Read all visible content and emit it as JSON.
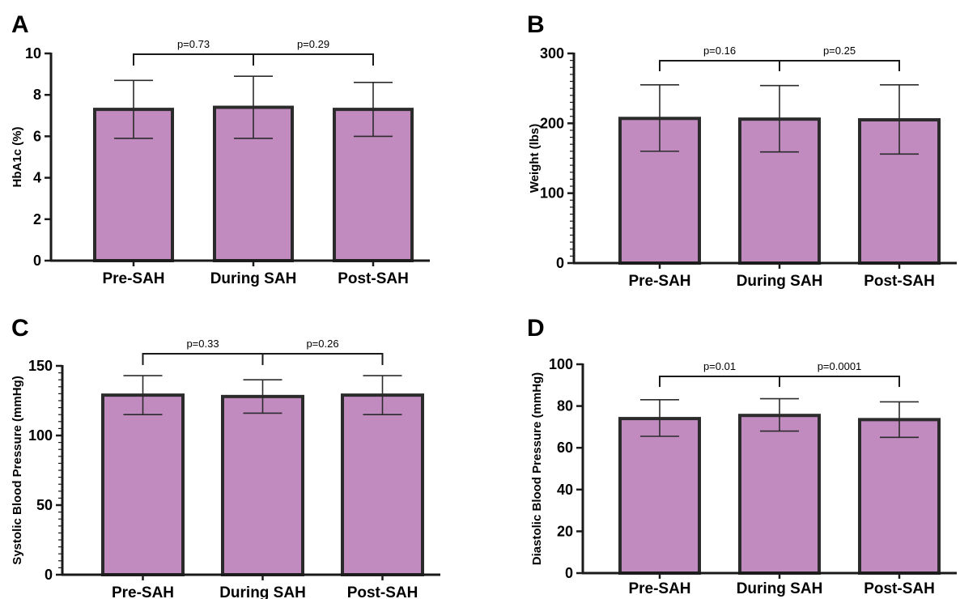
{
  "chart_data": [
    {
      "panel": "A",
      "type": "bar",
      "categories": [
        "Pre-SAH",
        "During SAH",
        "Post-SAH"
      ],
      "values": [
        7.3,
        7.4,
        7.3
      ],
      "error_upper": [
        8.7,
        8.9,
        8.6
      ],
      "error_lower": [
        5.9,
        5.9,
        6.0
      ],
      "ylabel": "HbA1c  (%)",
      "ylim": [
        0,
        10
      ],
      "major_ticks": [
        0,
        2,
        4,
        6,
        8,
        10
      ],
      "minor_ticks": false,
      "comparisons": [
        {
          "from": 0,
          "to": 1,
          "label": "p=0.73"
        },
        {
          "from": 1,
          "to": 2,
          "label": "p=0.29"
        }
      ],
      "bar_color": "#c28bc0"
    },
    {
      "panel": "B",
      "type": "bar",
      "categories": [
        "Pre-SAH",
        "During SAH",
        "Post-SAH"
      ],
      "values": [
        207,
        206,
        205
      ],
      "error_upper": [
        255,
        254,
        255
      ],
      "error_lower": [
        160,
        159,
        156
      ],
      "ylabel": "Weight (lbs)",
      "ylim": [
        0,
        300
      ],
      "major_ticks": [
        0,
        100,
        200,
        300
      ],
      "minor_ticks": true,
      "comparisons": [
        {
          "from": 0,
          "to": 1,
          "label": "p=0.16"
        },
        {
          "from": 1,
          "to": 2,
          "label": "p=0.25"
        }
      ],
      "bar_color": "#c28bc0"
    },
    {
      "panel": "C",
      "type": "bar",
      "categories": [
        "Pre-SAH",
        "During SAH",
        "Post-SAH"
      ],
      "values": [
        129,
        128,
        129
      ],
      "error_upper": [
        143,
        140,
        143
      ],
      "error_lower": [
        115,
        116,
        115
      ],
      "ylabel": "Systolic Blood Pressure (mmHg)",
      "ylim": [
        0,
        150
      ],
      "major_ticks": [
        0,
        50,
        100,
        150
      ],
      "minor_ticks": true,
      "comparisons": [
        {
          "from": 0,
          "to": 1,
          "label": "p=0.33"
        },
        {
          "from": 1,
          "to": 2,
          "label": "p=0.26"
        }
      ],
      "bar_color": "#c28bc0"
    },
    {
      "panel": "D",
      "type": "bar",
      "categories": [
        "Pre-SAH",
        "During SAH",
        "Post-SAH"
      ],
      "values": [
        74,
        75.5,
        73.5
      ],
      "error_upper": [
        83,
        83.5,
        82
      ],
      "error_lower": [
        65.5,
        68,
        65
      ],
      "ylabel": "Diastolic Blood Pressure (mmHg)",
      "ylim": [
        0,
        100
      ],
      "major_ticks": [
        0,
        20,
        40,
        60,
        80,
        100
      ],
      "minor_ticks": false,
      "comparisons": [
        {
          "from": 0,
          "to": 1,
          "label": "p=0.01"
        },
        {
          "from": 1,
          "to": 2,
          "label": "p=0.0001"
        }
      ],
      "bar_color": "#c28bc0"
    }
  ]
}
